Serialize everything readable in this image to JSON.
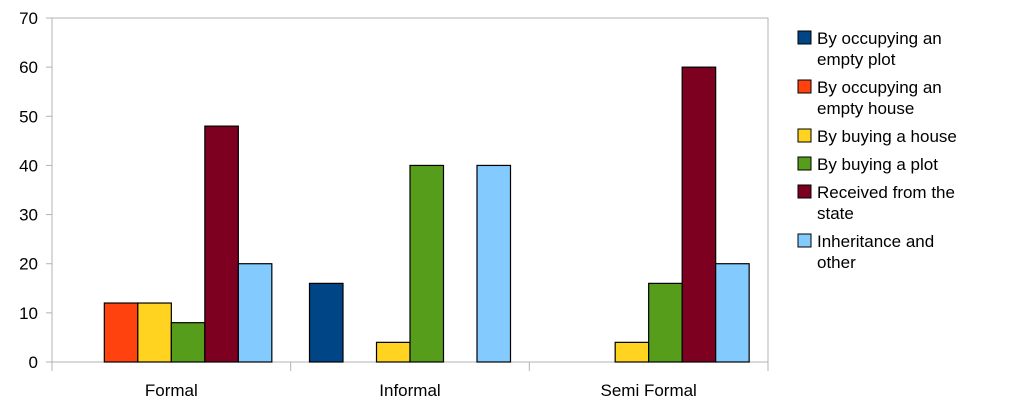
{
  "chart_data": {
    "type": "bar",
    "categories": [
      "Formal",
      "Informal",
      "Semi Formal"
    ],
    "series": [
      {
        "name": "By occupying an empty plot",
        "color": "#004586",
        "values": [
          0,
          16,
          0
        ]
      },
      {
        "name": "By occupying an empty house",
        "color": "#ff420e",
        "values": [
          12,
          0,
          0
        ]
      },
      {
        "name": "By buying a house",
        "color": "#ffd320",
        "values": [
          12,
          4,
          4
        ]
      },
      {
        "name": "By buying a plot",
        "color": "#579d1c",
        "values": [
          8,
          40,
          16
        ]
      },
      {
        "name": "Received from the state",
        "color": "#7e0021",
        "values": [
          48,
          0,
          60
        ]
      },
      {
        "name": "Inheritance and other",
        "color": "#83caff",
        "values": [
          20,
          40,
          20
        ]
      }
    ],
    "ylim": [
      0,
      70
    ],
    "yticks": [
      0,
      10,
      20,
      30,
      40,
      50,
      60,
      70
    ],
    "grid": false,
    "legend_position": "right"
  }
}
